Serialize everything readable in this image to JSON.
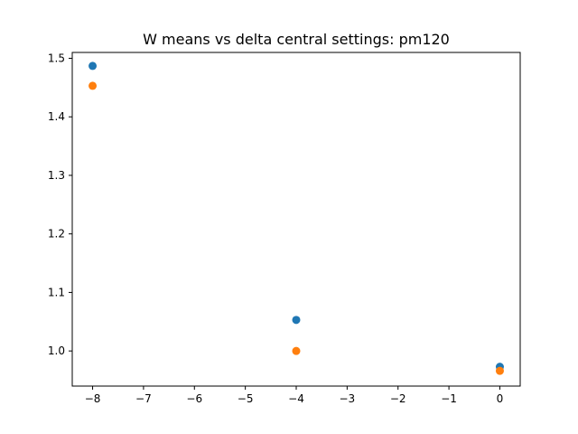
{
  "chart_data": {
    "type": "scatter",
    "title": "W means vs delta central settings: pm120",
    "xlabel": "",
    "ylabel": "",
    "xlim": [
      -8.4,
      0.4
    ],
    "ylim": [
      0.94,
      1.51
    ],
    "xticks": [
      -8,
      -7,
      -6,
      -5,
      -4,
      -3,
      -2,
      -1,
      0
    ],
    "xtick_labels": [
      "−8",
      "−7",
      "−6",
      "−5",
      "−4",
      "−3",
      "−2",
      "−1",
      "0"
    ],
    "yticks": [
      1.0,
      1.1,
      1.2,
      1.3,
      1.4,
      1.5
    ],
    "ytick_labels": [
      "1.0",
      "1.1",
      "1.2",
      "1.3",
      "1.4",
      "1.5"
    ],
    "grid": false,
    "legend": "none",
    "series": [
      {
        "color": "#1f77b4",
        "x": [
          -8,
          -4,
          0
        ],
        "y": [
          1.487,
          1.053,
          0.973
        ]
      },
      {
        "color": "#ff7f0e",
        "x": [
          -8,
          -4,
          0
        ],
        "y": [
          1.453,
          1.0,
          0.966
        ]
      }
    ]
  }
}
